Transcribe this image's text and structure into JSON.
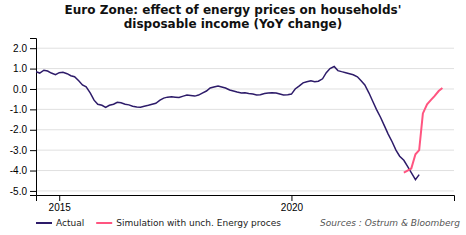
{
  "chart_data": {
    "type": "line",
    "title": "Euro Zone: effect of energy prices on households'\ndisposable income (YoY change)",
    "annotations": [
      "Sources : Ostrum & Bloomberg"
    ],
    "series": [
      {
        "name": "Actual",
        "color": "#2d1b69",
        "x": [
          2014.5,
          2014.58,
          2014.67,
          2014.75,
          2014.83,
          2014.92,
          2015.0,
          2015.08,
          2015.17,
          2015.25,
          2015.33,
          2015.42,
          2015.5,
          2015.58,
          2015.67,
          2015.75,
          2015.83,
          2015.92,
          2016.0,
          2016.08,
          2016.17,
          2016.25,
          2016.33,
          2016.42,
          2016.5,
          2016.58,
          2016.67,
          2016.75,
          2016.83,
          2016.92,
          2017.0,
          2017.08,
          2017.17,
          2017.25,
          2017.33,
          2017.42,
          2017.5,
          2017.58,
          2017.67,
          2017.75,
          2017.83,
          2017.92,
          2018.0,
          2018.08,
          2018.17,
          2018.25,
          2018.33,
          2018.42,
          2018.5,
          2018.58,
          2018.67,
          2018.75,
          2018.83,
          2018.92,
          2019.0,
          2019.08,
          2019.17,
          2019.25,
          2019.33,
          2019.42,
          2019.5,
          2019.58,
          2019.67,
          2019.75,
          2019.83,
          2019.92,
          2020.0,
          2020.08,
          2020.17,
          2020.25,
          2020.33,
          2020.42,
          2020.5,
          2020.58,
          2020.67,
          2020.75,
          2020.83,
          2020.92,
          2021.0,
          2021.08,
          2021.17,
          2021.25,
          2021.33,
          2021.42,
          2021.5,
          2021.58,
          2021.67,
          2021.75,
          2021.83,
          2021.92,
          2022.0,
          2022.08,
          2022.17,
          2022.25,
          2022.33,
          2022.42,
          2022.5,
          2022.58,
          2022.67,
          2022.75
        ],
        "values": [
          0.85,
          0.78,
          0.92,
          0.88,
          0.78,
          0.7,
          0.8,
          0.82,
          0.75,
          0.65,
          0.6,
          0.4,
          0.2,
          0.1,
          -0.2,
          -0.55,
          -0.75,
          -0.8,
          -0.9,
          -0.8,
          -0.75,
          -0.65,
          -0.68,
          -0.75,
          -0.78,
          -0.85,
          -0.88,
          -0.9,
          -0.85,
          -0.8,
          -0.75,
          -0.7,
          -0.55,
          -0.45,
          -0.4,
          -0.38,
          -0.4,
          -0.42,
          -0.35,
          -0.3,
          -0.32,
          -0.35,
          -0.3,
          -0.2,
          -0.1,
          0.05,
          0.1,
          0.15,
          0.1,
          0.05,
          -0.05,
          -0.1,
          -0.15,
          -0.2,
          -0.18,
          -0.22,
          -0.25,
          -0.3,
          -0.28,
          -0.22,
          -0.2,
          -0.18,
          -0.2,
          -0.25,
          -0.3,
          -0.28,
          -0.25,
          0.0,
          0.15,
          0.3,
          0.35,
          0.4,
          0.35,
          0.38,
          0.5,
          0.8,
          1.0,
          1.1,
          0.9,
          0.85,
          0.8,
          0.75,
          0.7,
          0.6,
          0.4,
          0.2,
          -0.2,
          -0.6,
          -1.0,
          -1.4,
          -1.8,
          -2.2,
          -2.6,
          -3.0,
          -3.3,
          -3.5,
          -3.8,
          -4.1,
          -4.45,
          -4.2
        ]
      },
      {
        "name": "Simulation with unch. Energy proces",
        "color": "#ff5580",
        "x": [
          2022.42,
          2022.5,
          2022.58,
          2022.67,
          2022.75,
          2022.83,
          2022.92,
          2023.0,
          2023.08,
          2023.17,
          2023.25
        ],
        "values": [
          -4.1,
          -4.0,
          -3.9,
          -3.2,
          -3.0,
          -1.2,
          -0.75,
          -0.55,
          -0.35,
          -0.1,
          0.05
        ]
      }
    ],
    "xlim": [
      2014.5,
      2023.5
    ],
    "xticks": [
      2015,
      2020
    ],
    "ylim": [
      -5.2,
      2.5
    ],
    "yticks": [
      {
        "value": -5.0,
        "label": "-5.0"
      },
      {
        "value": -4.0,
        "label": "-4.0"
      },
      {
        "value": -3.0,
        "label": "-3.0"
      },
      {
        "value": -2.0,
        "label": "-2.0"
      },
      {
        "value": -1.0,
        "label": "-1.0"
      },
      {
        "value": 0.0,
        "label": "0.0"
      },
      {
        "value": 1.0,
        "label": "1.0"
      },
      {
        "value": 2.0,
        "label": "2.0"
      }
    ],
    "grid": true,
    "legend": "bottom"
  }
}
